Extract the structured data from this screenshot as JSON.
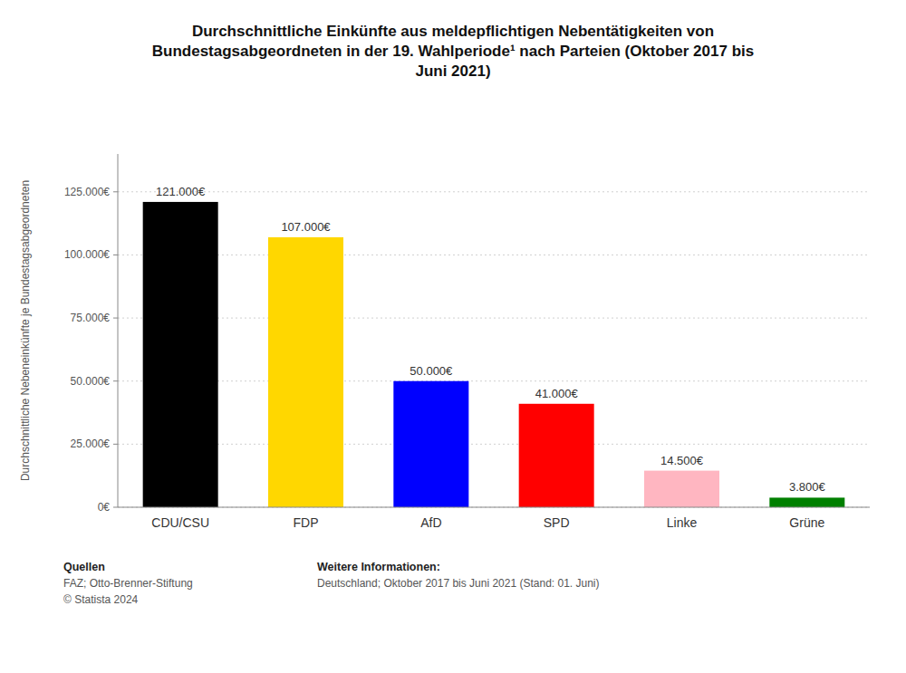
{
  "chart_data": {
    "type": "bar",
    "title": "Durchschnittliche Einkünfte aus meldepflichtigen Nebentätigkeiten von\nBundestagsabgeordneten in der 19. Wahlperiode¹ nach Parteien (Oktober 2017 bis\nJuni 2021)",
    "categories": [
      "CDU/CSU",
      "FDP",
      "AfD",
      "SPD",
      "Linke",
      "Grüne"
    ],
    "values": [
      121000,
      107000,
      50000,
      41000,
      14500,
      3800
    ],
    "value_labels": [
      "121.000€",
      "107.000€",
      "50.000€",
      "41.000€",
      "14.500€",
      "3.800€"
    ],
    "colors": [
      "#000000",
      "#FFD700",
      "#0000FF",
      "#FF0000",
      "#FFB6C1",
      "#008000"
    ],
    "ylabel": "Durchschnittliche Nebeneinkünfte je Bundestagsabgeordneten",
    "ylim": [
      0,
      140000
    ],
    "yticks": [
      {
        "value": 0,
        "label": "0€"
      },
      {
        "value": 25000,
        "label": "25.000€"
      },
      {
        "value": 50000,
        "label": "50.000€"
      },
      {
        "value": 75000,
        "label": "75.000€"
      },
      {
        "value": 100000,
        "label": "100.000€"
      },
      {
        "value": 125000,
        "label": "125.000€"
      }
    ],
    "grid": true,
    "data_labels": true,
    "annotations": [
      [
        "Quellen",
        "FAZ; Otto-Brenner-Stiftung",
        "© Statista 2024"
      ],
      [
        "Weitere Informationen:",
        "Deutschland; Oktober 2017 bis Juni 2021 (Stand: 01. Juni)"
      ]
    ]
  }
}
